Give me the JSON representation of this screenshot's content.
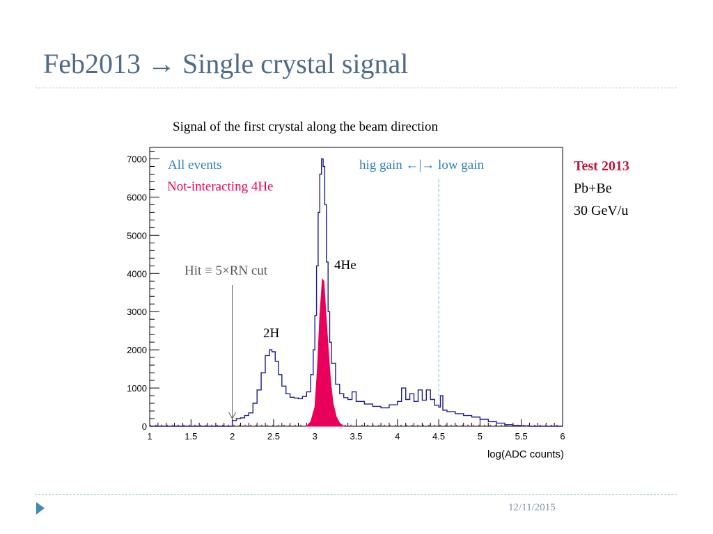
{
  "slide": {
    "title": "Feb2013 → Single crystal signal",
    "subtitle": "Signal of the first crystal along the beam direction",
    "footer_date": "12/11/2015",
    "side_notes": {
      "test": "Test 2013",
      "target": "Pb+Be",
      "energy": "30 GeV/u"
    }
  },
  "colors": {
    "title": "#4f6a86",
    "all_events": "#1c1c8c",
    "not_interacting": "#e8005a",
    "annotation_blue": "#2e7fb8",
    "test_label": "#c0143c",
    "rule": "#9fc6d3"
  },
  "chart_data": {
    "type": "area",
    "xlabel": "log(ADC counts)",
    "ylabel": "",
    "xlim": [
      1,
      6
    ],
    "ylim": [
      0,
      7300
    ],
    "x_ticks": [
      "1",
      "1.5",
      "2",
      "2.5",
      "3",
      "3.5",
      "4",
      "4.5",
      "5",
      "5.5",
      "6"
    ],
    "y_ticks": [
      "0",
      "1000",
      "2000",
      "3000",
      "4000",
      "5000",
      "6000",
      "7000"
    ],
    "legend_placement": "top-left",
    "series": [
      {
        "name": "All events",
        "x": [
          1.0,
          1.98,
          2.0,
          2.05,
          2.1,
          2.15,
          2.2,
          2.25,
          2.3,
          2.35,
          2.4,
          2.45,
          2.48,
          2.52,
          2.56,
          2.6,
          2.65,
          2.7,
          2.75,
          2.8,
          2.85,
          2.9,
          2.95,
          2.98,
          3.0,
          3.02,
          3.04,
          3.06,
          3.08,
          3.1,
          3.12,
          3.14,
          3.16,
          3.18,
          3.2,
          3.25,
          3.3,
          3.35,
          3.4,
          3.45,
          3.5,
          3.6,
          3.7,
          3.8,
          3.9,
          4.0,
          4.05,
          4.1,
          4.15,
          4.2,
          4.25,
          4.3,
          4.35,
          4.4,
          4.45,
          4.5,
          4.52,
          4.55,
          4.6,
          4.7,
          4.8,
          4.9,
          5.0,
          5.1,
          5.2,
          5.3,
          5.4,
          5.5,
          5.6,
          6.0
        ],
        "y": [
          0,
          0,
          150,
          200,
          220,
          280,
          350,
          600,
          950,
          1400,
          1850,
          2000,
          1950,
          1700,
          1350,
          1050,
          850,
          760,
          740,
          720,
          780,
          900,
          1350,
          2000,
          2900,
          4200,
          5600,
          6600,
          7000,
          6800,
          5800,
          4300,
          3000,
          2200,
          1650,
          1100,
          850,
          750,
          700,
          900,
          650,
          580,
          520,
          480,
          560,
          650,
          1000,
          700,
          850,
          650,
          950,
          680,
          950,
          700,
          550,
          500,
          800,
          420,
          380,
          330,
          280,
          240,
          180,
          120,
          80,
          40,
          20,
          10,
          0,
          0
        ]
      },
      {
        "name": "Not-interacting 4He",
        "x": [
          2.9,
          2.95,
          3.0,
          3.03,
          3.06,
          3.09,
          3.11,
          3.13,
          3.16,
          3.19,
          3.22,
          3.26,
          3.3,
          3.35
        ],
        "y": [
          0,
          120,
          500,
          1500,
          2900,
          3850,
          3800,
          3100,
          2100,
          1200,
          600,
          250,
          80,
          0
        ]
      }
    ],
    "annotations": {
      "legend_all": "All events",
      "legend_not_interacting": "Not-interacting 4He",
      "gain_label": "hig gain ←|→ low gain",
      "gain_boundary_x": 4.5,
      "hit_label": "Hit ≡ 5×RN cut",
      "hit_x": 2.0,
      "peak_he4": "4He",
      "peak_h2": "2H"
    }
  }
}
